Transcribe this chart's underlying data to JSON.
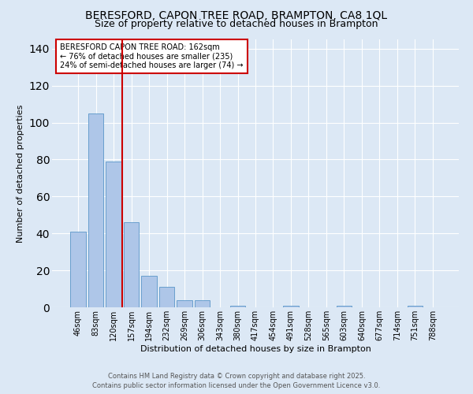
{
  "title": "BERESFORD, CAPON TREE ROAD, BRAMPTON, CA8 1QL",
  "subtitle": "Size of property relative to detached houses in Brampton",
  "xlabel": "Distribution of detached houses by size in Brampton",
  "ylabel": "Number of detached properties",
  "bar_labels": [
    "46sqm",
    "83sqm",
    "120sqm",
    "157sqm",
    "194sqm",
    "232sqm",
    "269sqm",
    "306sqm",
    "343sqm",
    "380sqm",
    "417sqm",
    "454sqm",
    "491sqm",
    "528sqm",
    "565sqm",
    "603sqm",
    "640sqm",
    "677sqm",
    "714sqm",
    "751sqm",
    "788sqm"
  ],
  "bar_values": [
    41,
    105,
    79,
    46,
    17,
    11,
    4,
    4,
    0,
    1,
    0,
    0,
    1,
    0,
    0,
    1,
    0,
    0,
    0,
    1,
    0
  ],
  "bar_color": "#aec6e8",
  "bar_edgecolor": "#5a96c8",
  "vline_index": 3,
  "vline_color": "#cc0000",
  "annotation_title": "BERESFORD CAPON TREE ROAD: 162sqm",
  "annotation_line1": "← 76% of detached houses are smaller (235)",
  "annotation_line2": "24% of semi-detached houses are larger (74) →",
  "annotation_box_color": "#cc0000",
  "ylim": [
    0,
    145
  ],
  "yticks": [
    0,
    20,
    40,
    60,
    80,
    100,
    120,
    140
  ],
  "footnote1": "Contains HM Land Registry data © Crown copyright and database right 2025.",
  "footnote2": "Contains public sector information licensed under the Open Government Licence v3.0.",
  "bg_color": "#dce8f5",
  "plot_bg_color": "#dce8f5",
  "title_fontsize": 10,
  "subtitle_fontsize": 9,
  "axis_fontsize": 8,
  "tick_fontsize": 7,
  "annot_fontsize": 7,
  "footnote_fontsize": 6
}
